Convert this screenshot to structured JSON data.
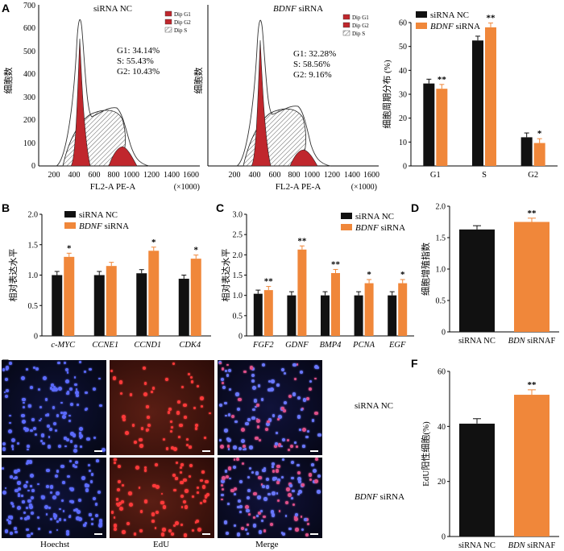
{
  "panel_letters": {
    "A": "A",
    "B": "B",
    "C": "C",
    "D": "D",
    "E": "E",
    "F": "F"
  },
  "flow": {
    "nc": {
      "title": "siRNA NC",
      "ylabel": "细胞数",
      "xlabel": "FL2-A PE-A",
      "x_multiplier": "(×1000)",
      "legend": [
        "Dip G1",
        "Dip G2",
        "Dip S"
      ],
      "stats": {
        "g1": "G1: 34.14%",
        "s": "S: 55.43%",
        "g2": "G2: 10.43%"
      },
      "y_ticks": [
        "0",
        "100",
        "200",
        "300",
        "400",
        "500",
        "600",
        "700"
      ],
      "x_ticks": [
        "200",
        "400",
        "600",
        "800",
        "1000",
        "1200",
        "1400",
        "1600"
      ]
    },
    "bdnf": {
      "title_italic": "BDNF",
      "title_rest": " siRNA",
      "ylabel": "细胞数",
      "xlabel": "FL2-A PE-A",
      "x_multiplier": "(×1000)",
      "legend": [
        "Dip G1",
        "Dip G2",
        "Dip S"
      ],
      "stats": {
        "g1": "G1: 32.28%",
        "s": "S: 58.56%",
        "g2": "G2: 9.16%"
      },
      "x_ticks": [
        "200",
        "400",
        "600",
        "800",
        "1000",
        "1200",
        "1400",
        "1600"
      ]
    }
  },
  "chart_data": [
    {
      "type": "bar",
      "title": "",
      "ylabel": "细胞周期分布 (%)",
      "categories": [
        "G1",
        "S",
        "G2"
      ],
      "ylim": [
        0,
        60
      ],
      "yticks": [
        0,
        10,
        20,
        30,
        40,
        50,
        60
      ],
      "series": [
        {
          "name": "siRNA NC",
          "values": [
            34.5,
            52.5,
            12.0
          ]
        },
        {
          "name": "BDNF siRNA",
          "values": [
            32.3,
            58.0,
            9.6
          ]
        }
      ],
      "significance": [
        "**",
        "**",
        "*"
      ],
      "legend": "top-left"
    },
    {
      "type": "bar",
      "ylabel": "相对表达水平",
      "categories": [
        "c-MYC",
        "CCNE1",
        "CCND1",
        "CDK4"
      ],
      "ylim": [
        0,
        2.0
      ],
      "yticks": [
        "0",
        "0.5",
        "1.0",
        "1.5",
        "2.0"
      ],
      "series": [
        {
          "name": "siRNA NC",
          "values": [
            1.0,
            1.0,
            1.03,
            0.94
          ]
        },
        {
          "name": "BDNF siRNA",
          "values": [
            1.3,
            1.15,
            1.4,
            1.27
          ]
        }
      ],
      "significance": [
        "*",
        "",
        "*",
        "*"
      ],
      "legend": "top-left"
    },
    {
      "type": "bar",
      "ylabel": "相对表达水平",
      "categories": [
        "FGF2",
        "GDNF",
        "BMP4",
        "PCNA",
        "EGF"
      ],
      "ylim": [
        0,
        3.0
      ],
      "yticks": [
        "0",
        "0.5",
        "1.0",
        "1.5",
        "2.0",
        "2.5",
        "3.0"
      ],
      "series": [
        {
          "name": "siRNA NC",
          "values": [
            1.04,
            1.0,
            1.0,
            1.0,
            1.0
          ]
        },
        {
          "name": "BDNF siRNA",
          "values": [
            1.13,
            2.13,
            1.55,
            1.3,
            1.3
          ]
        }
      ],
      "significance": [
        "**",
        "**",
        "**",
        "*",
        "*"
      ],
      "legend": "top-right"
    },
    {
      "type": "bar",
      "ylabel": "细胞增殖指数",
      "categories": [
        "siRNA NC",
        "BDN siRNAF"
      ],
      "ylim": [
        0,
        2.0
      ],
      "yticks": [
        "0",
        "0.5",
        "1.0",
        "1.5",
        "2.0"
      ],
      "values": [
        1.63,
        1.75
      ],
      "significance": [
        "",
        "**"
      ]
    },
    {
      "type": "bar",
      "ylabel": "EdU阳性细胞(%)",
      "categories": [
        "siRNA NC",
        "BDN siRNAF"
      ],
      "ylim": [
        0,
        60
      ],
      "yticks": [
        "0",
        "20",
        "40",
        "60"
      ],
      "values": [
        41,
        51.5
      ],
      "significance": [
        "",
        "**"
      ]
    }
  ],
  "micrographs": {
    "columns": [
      "Hoechst",
      "EdU",
      "Merge"
    ],
    "rows": [
      {
        "italic": "",
        "text": "siRNA NC"
      },
      {
        "italic": "BDNF",
        "text": " siRNA"
      }
    ]
  },
  "colors": {
    "nc": "#111111",
    "bdnf": "#f0873a",
    "g1_fill": "#c0272d",
    "s_fill": "#ffffff"
  }
}
